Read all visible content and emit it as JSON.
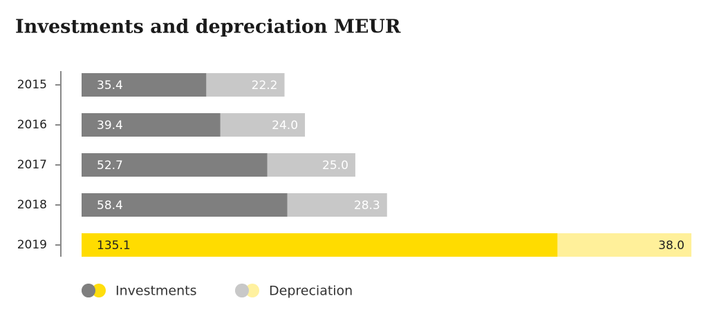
{
  "chart_data": {
    "type": "bar",
    "orientation": "horizontal",
    "stacked": true,
    "title": "Investments and depreciation MEUR",
    "categories": [
      "2015",
      "2016",
      "2017",
      "2018",
      "2019"
    ],
    "series": [
      {
        "name": "Investments",
        "colors": [
          "#7f7f7f",
          "#7f7f7f",
          "#7f7f7f",
          "#7f7f7f",
          "#ffdc00"
        ],
        "values": [
          35.4,
          39.4,
          52.7,
          58.4,
          135.1
        ],
        "value_labels": [
          "35.4",
          "39.4",
          "52.7",
          "58.4",
          "135.1"
        ]
      },
      {
        "name": "Depreciation",
        "colors": [
          "#c8c8c8",
          "#c8c8c8",
          "#c8c8c8",
          "#c8c8c8",
          "#fff09a"
        ],
        "values": [
          22.2,
          24,
          25,
          28.3,
          38
        ],
        "value_labels": [
          "22.2",
          "24.0",
          "25.0",
          "28.3",
          "38.0"
        ]
      }
    ]
  }
}
